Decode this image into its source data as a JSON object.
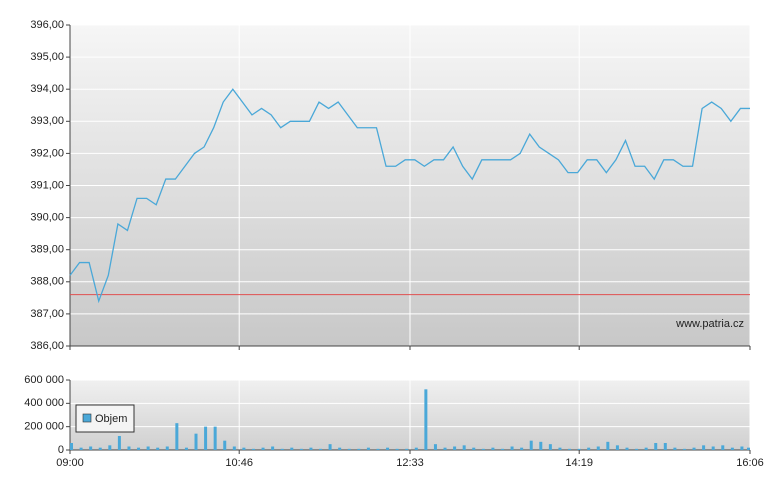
{
  "chart_data": [
    {
      "type": "line",
      "x": [
        "09:00",
        "09:06",
        "09:12",
        "09:18",
        "09:24",
        "09:30",
        "09:36",
        "09:42",
        "09:48",
        "09:54",
        "10:00",
        "10:06",
        "10:12",
        "10:18",
        "10:24",
        "10:30",
        "10:36",
        "10:42",
        "10:48",
        "10:54",
        "11:00",
        "11:06",
        "11:12",
        "11:18",
        "11:24",
        "11:30",
        "11:36",
        "11:42",
        "11:48",
        "11:54",
        "12:00",
        "12:06",
        "12:12",
        "12:18",
        "12:24",
        "12:30",
        "12:36",
        "12:42",
        "12:48",
        "12:54",
        "13:00",
        "13:06",
        "13:12",
        "13:18",
        "13:24",
        "13:30",
        "13:36",
        "13:42",
        "13:48",
        "13:54",
        "14:00",
        "14:06",
        "14:12",
        "14:18",
        "14:24",
        "14:30",
        "14:36",
        "14:42",
        "14:48",
        "14:54",
        "15:00",
        "15:06",
        "15:12",
        "15:18",
        "15:24",
        "15:30",
        "15:36",
        "15:42",
        "15:48",
        "15:54",
        "16:00",
        "16:06"
      ],
      "series": [
        {
          "color": "#4aa8d8",
          "values": [
            388.2,
            388.6,
            388.6,
            387.4,
            388.2,
            389.8,
            389.6,
            390.6,
            390.6,
            390.4,
            391.2,
            391.2,
            391.6,
            392.0,
            392.2,
            392.8,
            393.6,
            394.0,
            393.6,
            393.2,
            393.4,
            393.2,
            392.8,
            393.0,
            393.0,
            393.0,
            393.6,
            393.4,
            393.6,
            393.2,
            392.8,
            392.8,
            392.8,
            391.6,
            391.6,
            391.8,
            391.8,
            391.6,
            391.8,
            391.8,
            392.2,
            391.6,
            391.2,
            391.8,
            391.8,
            391.8,
            391.8,
            392.0,
            392.6,
            392.2,
            392.0,
            391.8,
            391.4,
            391.4,
            391.8,
            391.8,
            391.4,
            391.8,
            392.4,
            391.6,
            391.6,
            391.2,
            391.8,
            391.8,
            391.6,
            391.6,
            393.4,
            393.6,
            393.4,
            393.0,
            393.4,
            393.4
          ]
        }
      ],
      "reference_line": {
        "value": 387.6,
        "color": "#e05050"
      },
      "xlim": [
        "09:00",
        "16:06"
      ],
      "xticks": [
        "09:00",
        "10:46",
        "12:33",
        "14:19",
        "16:06"
      ],
      "ylim": [
        386,
        396
      ],
      "yticks": [
        {
          "value": 386,
          "label": "386,00"
        },
        {
          "value": 387,
          "label": "387,00"
        },
        {
          "value": 388,
          "label": "388,00"
        },
        {
          "value": 389,
          "label": "389,00"
        },
        {
          "value": 390,
          "label": "390,00"
        },
        {
          "value": 391,
          "label": "391,00"
        },
        {
          "value": 392,
          "label": "392,00"
        },
        {
          "value": 393,
          "label": "393,00"
        },
        {
          "value": 394,
          "label": "394,00"
        },
        {
          "value": 395,
          "label": "395,00"
        },
        {
          "value": 396,
          "label": "396,00"
        }
      ],
      "grid": true,
      "watermark": "www.patria.cz"
    },
    {
      "type": "bar",
      "x": [
        "09:00",
        "09:06",
        "09:12",
        "09:18",
        "09:24",
        "09:30",
        "09:36",
        "09:42",
        "09:48",
        "09:54",
        "10:00",
        "10:06",
        "10:12",
        "10:18",
        "10:24",
        "10:30",
        "10:36",
        "10:42",
        "10:48",
        "10:54",
        "11:00",
        "11:06",
        "11:12",
        "11:18",
        "11:24",
        "11:30",
        "11:36",
        "11:42",
        "11:48",
        "11:54",
        "12:00",
        "12:06",
        "12:12",
        "12:18",
        "12:24",
        "12:30",
        "12:36",
        "12:42",
        "12:48",
        "12:54",
        "13:00",
        "13:06",
        "13:12",
        "13:18",
        "13:24",
        "13:30",
        "13:36",
        "13:42",
        "13:48",
        "13:54",
        "14:00",
        "14:06",
        "14:12",
        "14:18",
        "14:24",
        "14:30",
        "14:36",
        "14:42",
        "14:48",
        "14:54",
        "15:00",
        "15:06",
        "15:12",
        "15:18",
        "15:24",
        "15:30",
        "15:36",
        "15:42",
        "15:48",
        "15:54",
        "16:00",
        "16:06"
      ],
      "series": [
        {
          "name": "Objem",
          "color": "#4aa8d8",
          "values": [
            60000,
            20000,
            30000,
            20000,
            40000,
            120000,
            30000,
            20000,
            30000,
            20000,
            30000,
            230000,
            20000,
            140000,
            200000,
            200000,
            80000,
            30000,
            20000,
            10000,
            20000,
            30000,
            10000,
            20000,
            10000,
            20000,
            10000,
            50000,
            20000,
            10000,
            10000,
            20000,
            10000,
            20000,
            10000,
            10000,
            20000,
            520000,
            50000,
            20000,
            30000,
            40000,
            20000,
            10000,
            20000,
            10000,
            30000,
            20000,
            80000,
            70000,
            50000,
            20000,
            10000,
            10000,
            20000,
            30000,
            70000,
            40000,
            20000,
            10000,
            20000,
            60000,
            60000,
            20000,
            10000,
            20000,
            40000,
            30000,
            40000,
            20000,
            30000,
            20000
          ]
        }
      ],
      "xlim": [
        "09:00",
        "16:06"
      ],
      "xticks": [
        "09:00",
        "10:46",
        "12:33",
        "14:19",
        "16:06"
      ],
      "ylim": [
        0,
        600000
      ],
      "yticks": [
        0,
        {
          "value": 200000,
          "label": "200 000"
        },
        {
          "value": 400000,
          "label": "400 000"
        },
        {
          "value": 600000,
          "label": "600 000"
        }
      ],
      "grid": true,
      "legend": "bottom-left"
    }
  ]
}
